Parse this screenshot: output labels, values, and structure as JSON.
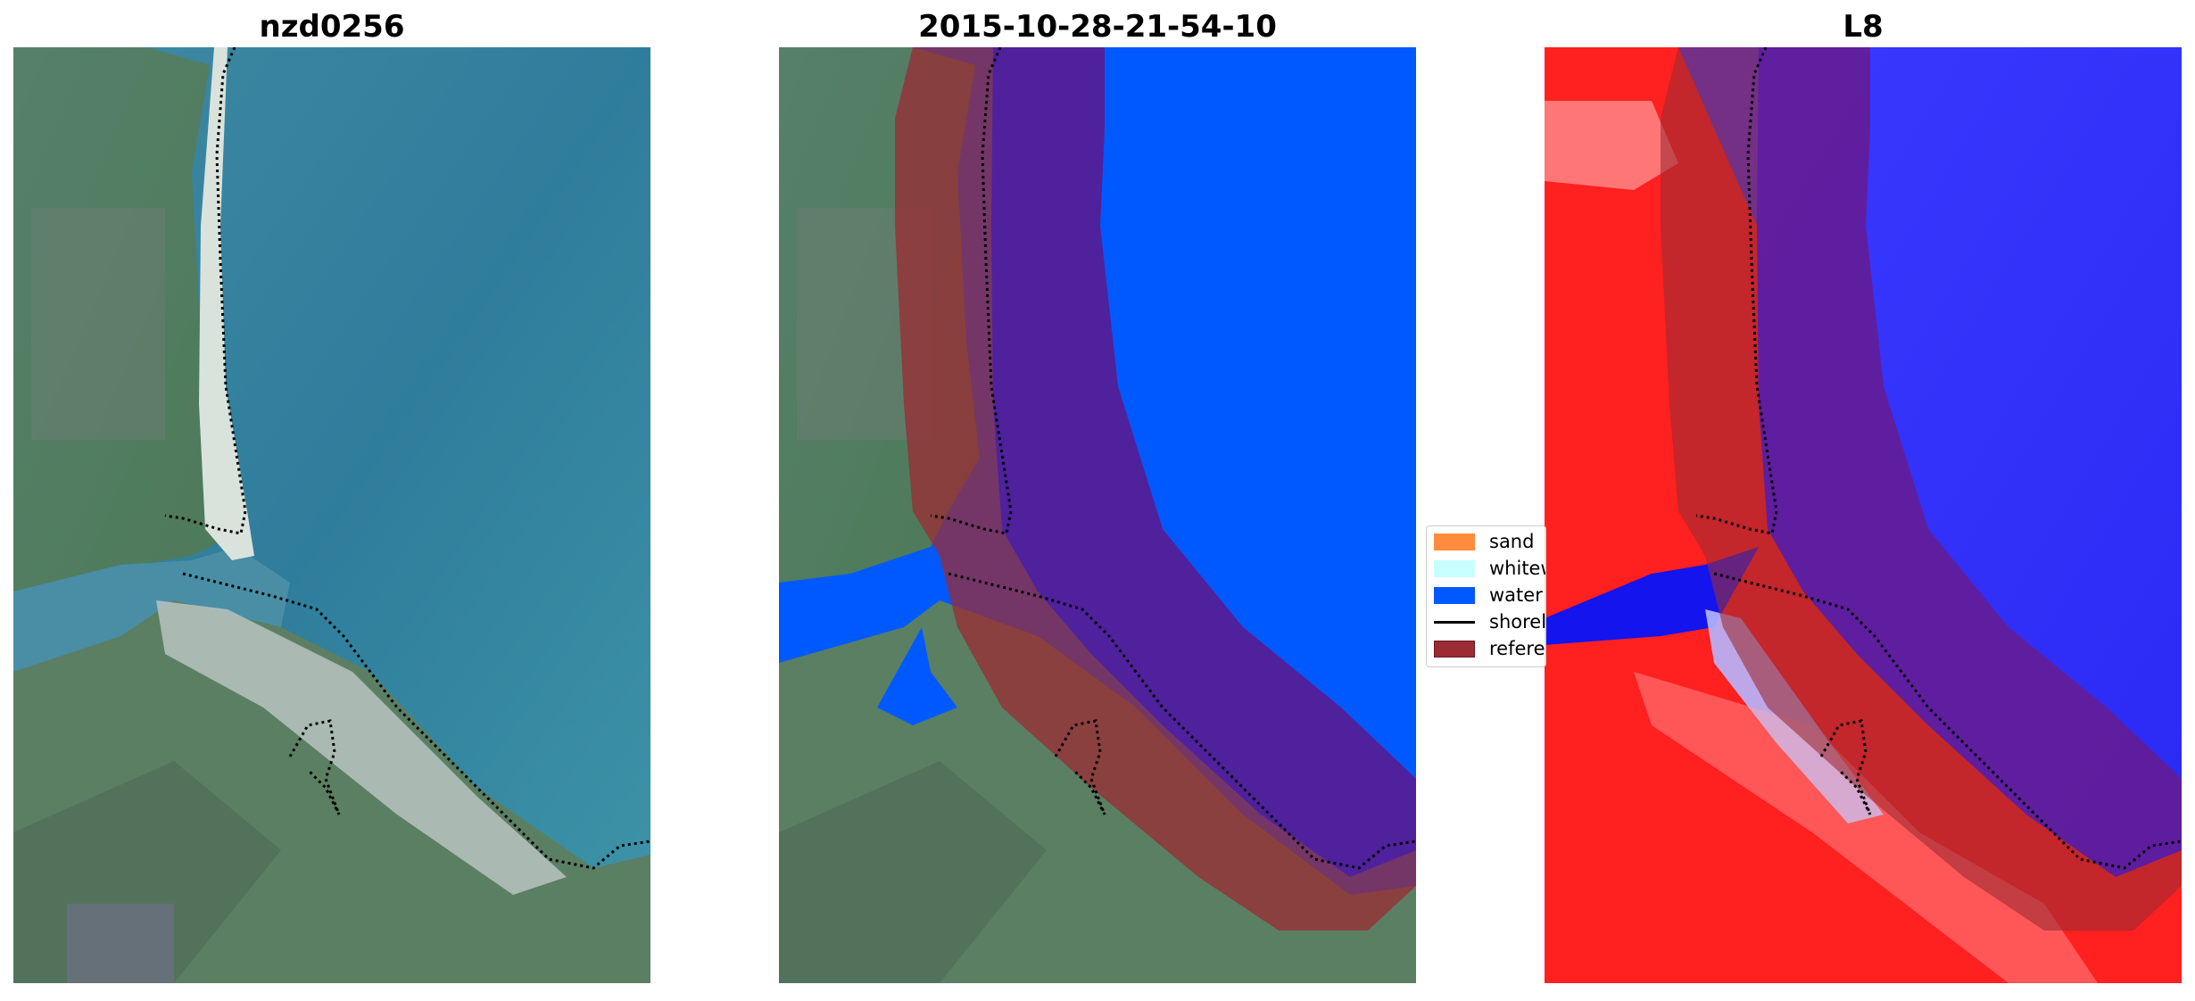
{
  "panels": [
    {
      "title": "nzd0256"
    },
    {
      "title": "2015-10-28-21-54-10"
    },
    {
      "title": "L8"
    }
  ],
  "legend": {
    "items": [
      {
        "label": "sand",
        "color": "#ff8c3c",
        "kind": "patch"
      },
      {
        "label": "whitewater",
        "color": "#c8ffff",
        "kind": "patch"
      },
      {
        "label": "water",
        "color": "#0059ff",
        "kind": "patch"
      },
      {
        "label": "shoreline",
        "color": "#000000",
        "kind": "line"
      },
      {
        "label": "reference",
        "color": "#9b2b34",
        "kind": "patch"
      }
    ]
  },
  "colors": {
    "water_rgb": "#3a8ba6",
    "land_rgb": "#4e7a62",
    "classified_water": "#0059ff",
    "reference_overlay": "#9b2b34",
    "index_positive": "#ff1a1a",
    "index_negative": "#1a1aff"
  }
}
